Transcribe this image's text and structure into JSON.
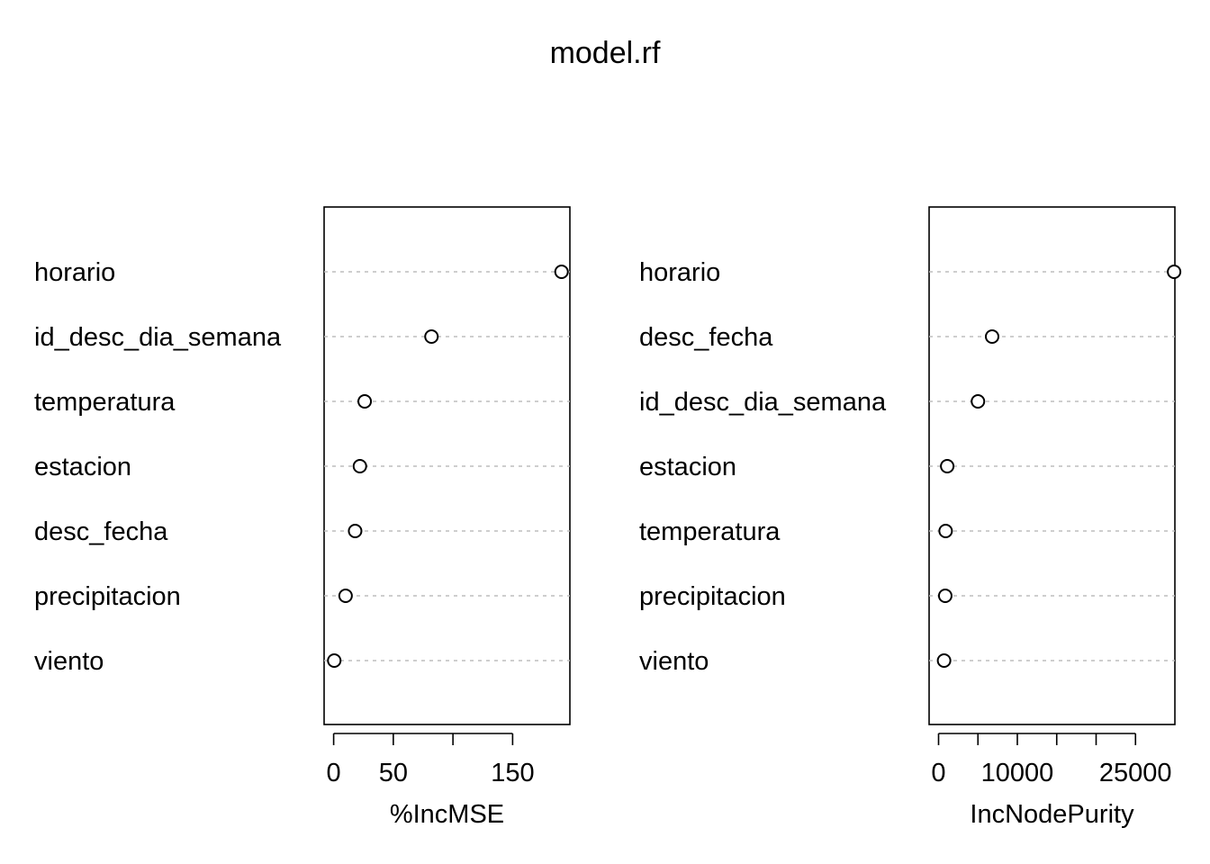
{
  "title": "model.rf",
  "chart_data": [
    {
      "type": "scatter",
      "title": "",
      "xlabel": "%IncMSE",
      "ylabel": "",
      "xlim": [
        -8,
        198
      ],
      "xticks": [
        0,
        50,
        100,
        150
      ],
      "xtick_labels": [
        "0",
        "50",
        "",
        "150"
      ],
      "grid": "horizontal dotted guide lines",
      "categories": [
        "horario",
        "id_desc_dia_semana",
        "temperatura",
        "estacion",
        "desc_fecha",
        "precipitacion",
        "viento"
      ],
      "values": [
        191,
        82,
        26,
        22,
        18,
        10,
        0.5
      ]
    },
    {
      "type": "scatter",
      "title": "",
      "xlabel": "IncNodePurity",
      "ylabel": "",
      "xlim": [
        -1200,
        30000
      ],
      "xticks": [
        0,
        5000,
        10000,
        15000,
        20000,
        25000
      ],
      "xtick_labels": [
        "0",
        "",
        "10000",
        "",
        "",
        "25000"
      ],
      "grid": "horizontal dotted guide lines",
      "categories": [
        "horario",
        "desc_fecha",
        "id_desc_dia_semana",
        "estacion",
        "temperatura",
        "precipitacion",
        "viento"
      ],
      "values": [
        29900,
        6800,
        5000,
        1100,
        900,
        850,
        700
      ]
    }
  ]
}
